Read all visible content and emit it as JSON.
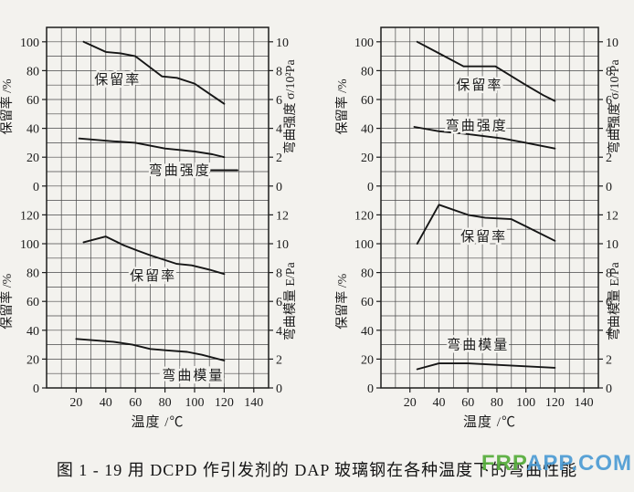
{
  "page": {
    "background": "#f3f2ee",
    "ink": "#1c1c1c"
  },
  "caption": "图 1 - 19  用 DCPD 作引发剂的 DAP 玻璃钢在各种温度下的弯曲性能",
  "watermark": {
    "green_part": "FRP",
    "blue_part": "APP.COM",
    "green": "#55ad3a",
    "blue": "#4c9cd4"
  },
  "chart_data": [
    {
      "type": "line",
      "title": "",
      "x_axis": {
        "label": "温度 /℃",
        "min": 0,
        "max": 150,
        "minor_step": 10,
        "tick_labels": [
          20,
          40,
          60,
          80,
          100,
          120,
          140
        ],
        "grid": true
      },
      "panels": [
        {
          "left_axis": {
            "label": "保留率 /%",
            "ticks": [
              0,
              20,
              40,
              60,
              80,
              100
            ],
            "headroom": 10
          },
          "right_axis": {
            "label": "弯曲强度 σ/10²Pa",
            "ticks": [
              0,
              2,
              4,
              6,
              8,
              10
            ]
          },
          "series": [
            {
              "name": "保留率",
              "label_pos": [
                48,
                74
              ],
              "points": [
                [
                  25,
                  100
                ],
                [
                  40,
                  93
                ],
                [
                  50,
                  92
                ],
                [
                  60,
                  90
                ],
                [
                  78,
                  76
                ],
                [
                  88,
                  75
                ],
                [
                  100,
                  71
                ],
                [
                  110,
                  64
                ],
                [
                  120,
                  57
                ]
              ]
            },
            {
              "name": "弯曲强度",
              "label_pos": [
                90,
                11
              ],
              "leader": [
                [
                  108,
                  11
                ],
                [
                  129,
                  11
                ]
              ],
              "points": [
                [
                  22,
                  33
                ],
                [
                  45,
                  31
                ],
                [
                  60,
                  30
                ],
                [
                  80,
                  26
                ],
                [
                  100,
                  24
                ],
                [
                  112,
                  22
                ],
                [
                  120,
                  20
                ]
              ]
            }
          ]
        },
        {
          "left_axis": {
            "label": "保留率 /%",
            "ticks": [
              0,
              20,
              40,
              60,
              80,
              100,
              120
            ],
            "headroom": 0
          },
          "right_axis": {
            "label": "弯曲模量 E/Pa",
            "ticks": [
              0,
              2,
              4,
              6,
              8,
              10,
              12
            ]
          },
          "series": [
            {
              "name": "保留率",
              "label_pos": [
                72,
                78
              ],
              "points": [
                [
                  25,
                  101
                ],
                [
                  40,
                  105
                ],
                [
                  52,
                  99
                ],
                [
                  62,
                  95
                ],
                [
                  70,
                  92
                ],
                [
                  88,
                  86
                ],
                [
                  98,
                  85
                ],
                [
                  110,
                  82
                ],
                [
                  120,
                  79
                ]
              ]
            },
            {
              "name": "弯曲模量",
              "label_pos": [
                99,
                9
              ],
              "points": [
                [
                  20,
                  34
                ],
                [
                  45,
                  32
                ],
                [
                  58,
                  30
                ],
                [
                  70,
                  27
                ],
                [
                  82,
                  26
                ],
                [
                  95,
                  25
                ],
                [
                  105,
                  23
                ],
                [
                  120,
                  19
                ]
              ]
            }
          ]
        }
      ]
    },
    {
      "type": "line",
      "title": "",
      "x_axis": {
        "label": "温度 /℃",
        "min": 0,
        "max": 150,
        "minor_step": 10,
        "tick_labels": [
          20,
          40,
          60,
          80,
          100,
          120,
          140
        ],
        "grid": true
      },
      "panels": [
        {
          "left_axis": {
            "label": "保留率 /%",
            "ticks": [
              0,
              20,
              40,
              60,
              80,
              100
            ],
            "headroom": 10
          },
          "right_axis": {
            "label": "弯曲强度 σ/10²Pa",
            "ticks": [
              0,
              2,
              4,
              6,
              8,
              10
            ]
          },
          "series": [
            {
              "name": "保留率",
              "label_pos": [
                68,
                70
              ],
              "points": [
                [
                  25,
                  100
                ],
                [
                  40,
                  92
                ],
                [
                  57,
                  83
                ],
                [
                  79,
                  83
                ],
                [
                  100,
                  70
                ],
                [
                  112,
                  63
                ],
                [
                  120,
                  59
                ]
              ]
            },
            {
              "name": "弯曲强度",
              "label_pos": [
                66,
                42
              ],
              "points": [
                [
                  23,
                  41
                ],
                [
                  40,
                  38
                ],
                [
                  60,
                  36
                ],
                [
                  84,
                  33
                ],
                [
                  100,
                  30
                ],
                [
                  110,
                  28
                ],
                [
                  120,
                  26
                ]
              ]
            }
          ]
        },
        {
          "left_axis": {
            "label": "保留率 /%",
            "ticks": [
              0,
              20,
              40,
              60,
              80,
              100,
              120
            ],
            "headroom": 0
          },
          "right_axis": {
            "label": "弯曲模量 E/Pa",
            "ticks": [
              0,
              2,
              4,
              6,
              8,
              10,
              12
            ]
          },
          "series": [
            {
              "name": "保留率",
              "label_pos": [
                71,
                105
              ],
              "points": [
                [
                  25,
                  100
                ],
                [
                  40,
                  127
                ],
                [
                  60,
                  120
                ],
                [
                  72,
                  118
                ],
                [
                  90,
                  117
                ],
                [
                  100,
                  112
                ],
                [
                  110,
                  107
                ],
                [
                  120,
                  102
                ]
              ]
            },
            {
              "name": "弯曲模量",
              "label_pos": [
                67,
                30
              ],
              "points": [
                [
                  25,
                  13
                ],
                [
                  40,
                  17
                ],
                [
                  60,
                  17
                ],
                [
                  80,
                  16
                ],
                [
                  100,
                  15
                ],
                [
                  120,
                  14
                ]
              ]
            }
          ]
        }
      ]
    }
  ]
}
